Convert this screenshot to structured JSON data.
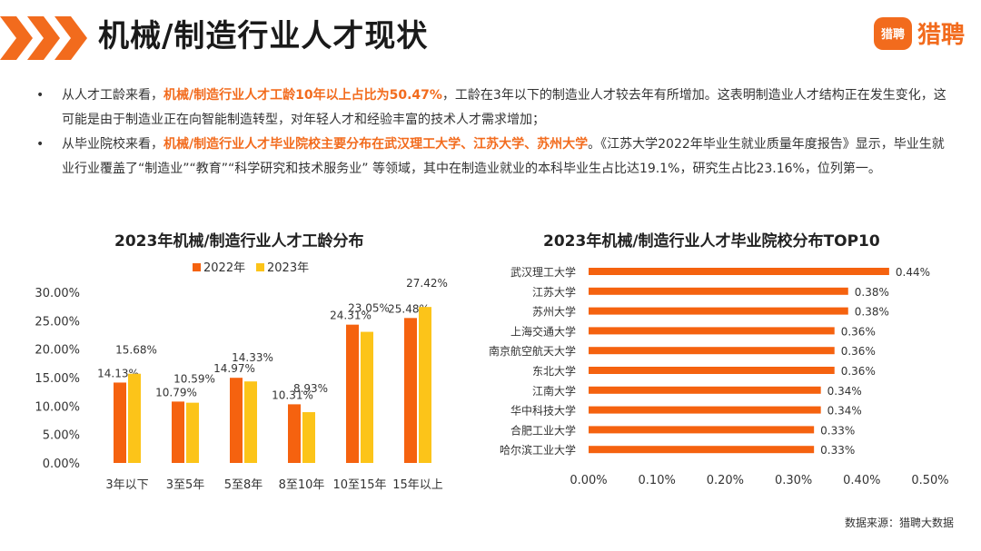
{
  "header": {
    "title": "机械/制造行业人才现状",
    "logo_icon_text": "猎聘",
    "logo_text": "猎聘"
  },
  "bullets": [
    {
      "dot": "•",
      "pre": "从人才工龄来看，",
      "highlight": "机械/制造行业人才工龄10年以上占比为50.47%",
      "post": "，工龄在3年以下的制造业人才较去年有所增加。这表明制造业人才结构正在发生变化，这可能是由于制造业正在向智能制造转型，对年轻人才和经验丰富的技术人才需求增加；"
    },
    {
      "dot": "•",
      "pre": "从毕业院校来看，",
      "highlight": "机械/制造行业人才毕业院校主要分布在武汉理工大学、江苏大学、苏州大学",
      "post": "。《江苏大学2022年毕业生就业质量年度报告》显示，毕业生就业行业覆盖了“制造业”“教育”“科学研究和技术服务业” 等领域，其中在制造业就业的本科毕业生占比达19.1%，研究生占比23.16%，位列第一。"
    }
  ],
  "chart_data": [
    {
      "type": "bar",
      "title": "2023年机械/制造行业人才工龄分布",
      "categories": [
        "3年以下",
        "3至5年",
        "5至8年",
        "8至10年",
        "10至15年",
        "15年以上"
      ],
      "series": [
        {
          "name": "2022年",
          "color": "#f5620f",
          "values": [
            14.13,
            10.79,
            14.97,
            10.31,
            24.31,
            25.48
          ],
          "labels": [
            "14.13%",
            "10.79%",
            "14.97%",
            "10.31%",
            "24.31%",
            "25.48%"
          ]
        },
        {
          "name": "2023年",
          "color": "#fcc419",
          "values": [
            15.68,
            10.59,
            14.33,
            8.93,
            23.05,
            27.42
          ],
          "labels": [
            "15.68%",
            "10.59%",
            "14.33%",
            "8.93%",
            "23.05%",
            "27.42%"
          ]
        }
      ],
      "ylim": [
        0,
        30
      ],
      "yticks": [
        "0.00%",
        "5.00%",
        "10.00%",
        "15.00%",
        "20.00%",
        "25.00%",
        "30.00%"
      ],
      "legend": "top"
    },
    {
      "type": "bar",
      "orientation": "horizontal",
      "title": "2023年机械/制造行业人才毕业院校分布TOP10",
      "categories": [
        "武汉理工大学",
        "江苏大学",
        "苏州大学",
        "上海交通大学",
        "南京航空航天大学",
        "东北大学",
        "江南大学",
        "华中科技大学",
        "合肥工业大学",
        "哈尔滨工业大学"
      ],
      "values": [
        0.44,
        0.38,
        0.38,
        0.36,
        0.36,
        0.36,
        0.34,
        0.34,
        0.33,
        0.33
      ],
      "labels": [
        "0.44%",
        "0.38%",
        "0.38%",
        "0.36%",
        "0.36%",
        "0.36%",
        "0.34%",
        "0.34%",
        "0.33%",
        "0.33%"
      ],
      "color": "#f5620f",
      "xlim": [
        0,
        0.5
      ],
      "xticks": [
        "0.00%",
        "0.10%",
        "0.20%",
        "0.30%",
        "0.40%",
        "0.50%"
      ]
    }
  ],
  "source": "数据来源：猎聘大数据"
}
